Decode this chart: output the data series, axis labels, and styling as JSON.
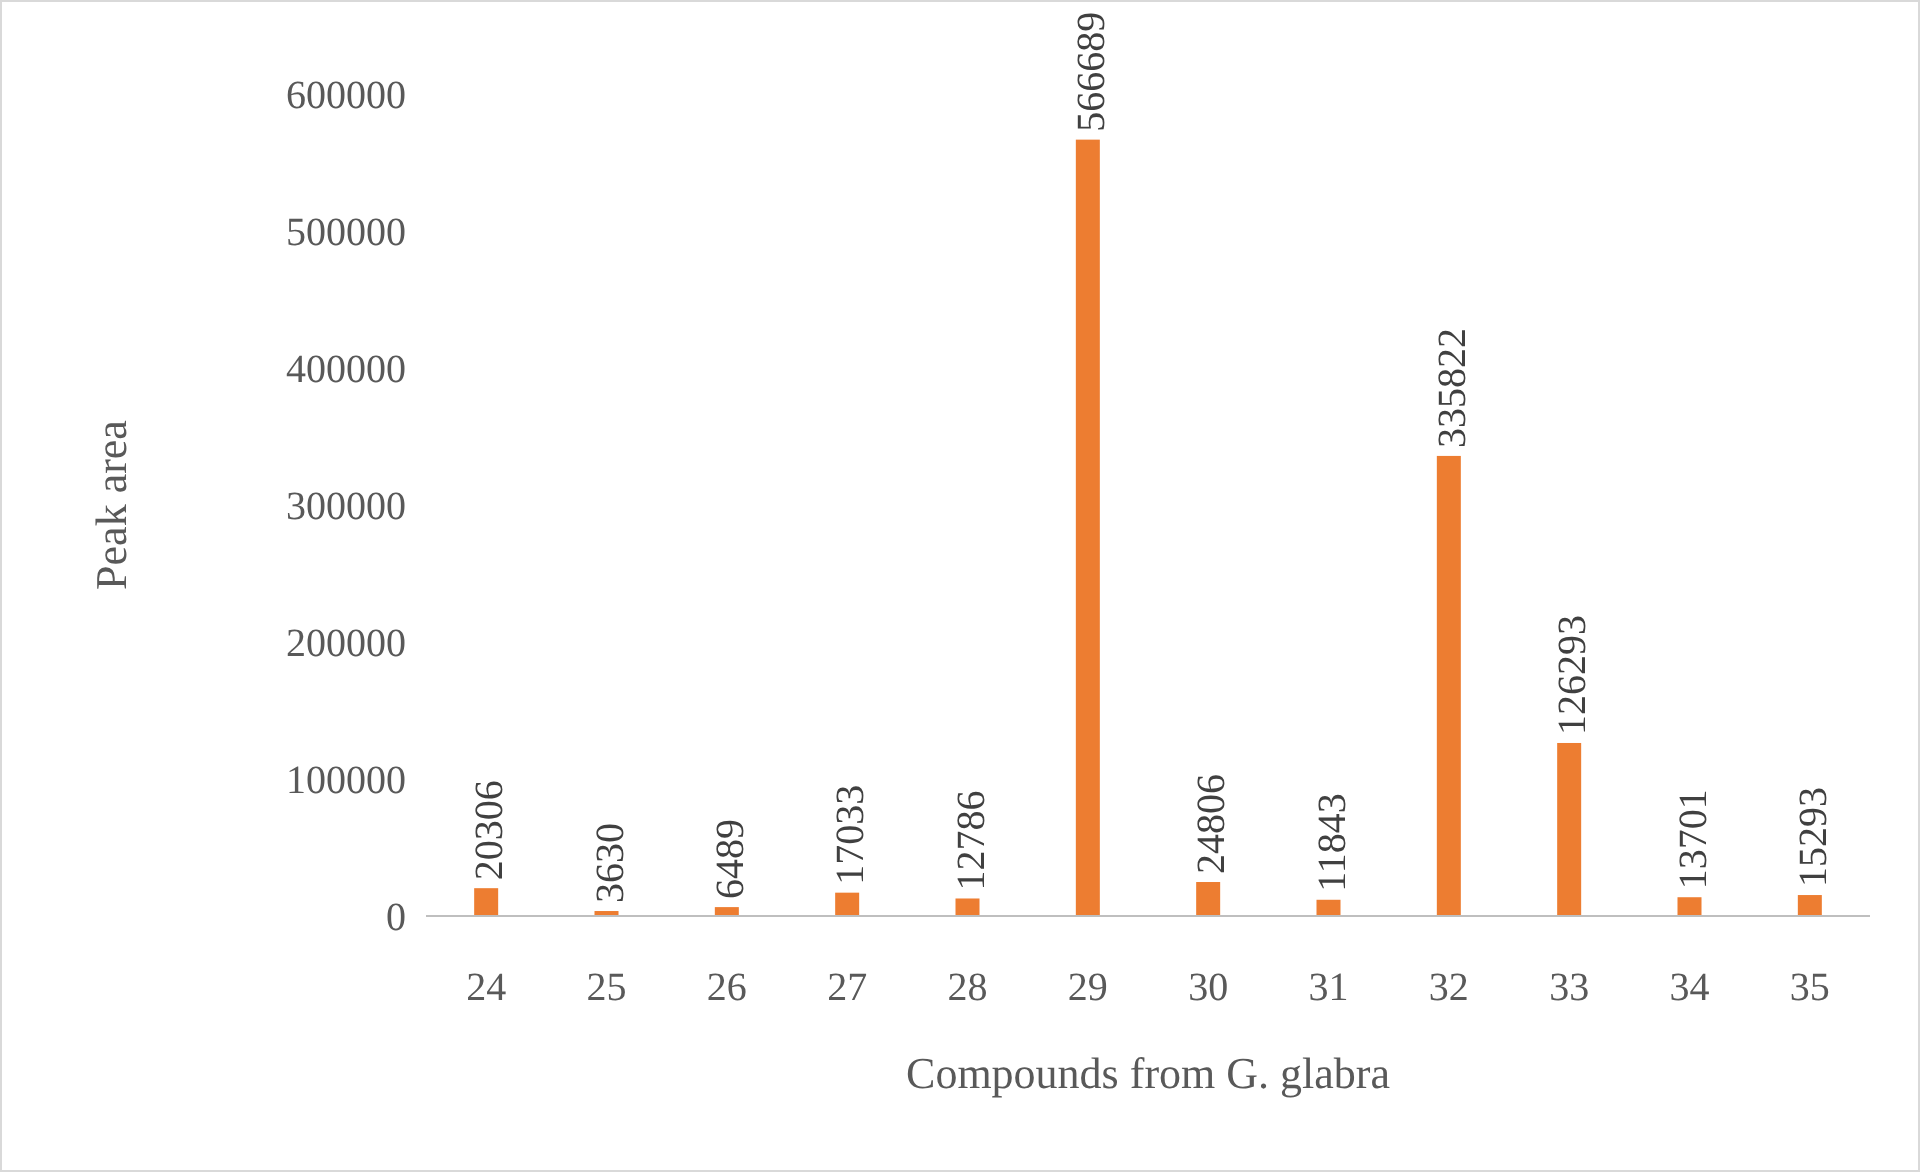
{
  "chart_data": {
    "type": "bar",
    "xlabel": "Compounds from G. glabra",
    "ylabel": "Peak area",
    "categories": [
      "24",
      "25",
      "26",
      "27",
      "28",
      "29",
      "30",
      "31",
      "32",
      "33",
      "34",
      "35"
    ],
    "values": [
      20306,
      3630,
      6489,
      17033,
      12786,
      566689,
      24806,
      11843,
      335822,
      126293,
      13701,
      15293
    ],
    "color": "#ed7d31",
    "ylim": [
      0,
      600000
    ],
    "yticks": [
      0,
      100000,
      200000,
      300000,
      400000,
      500000,
      600000
    ],
    "data_labels": true
  }
}
